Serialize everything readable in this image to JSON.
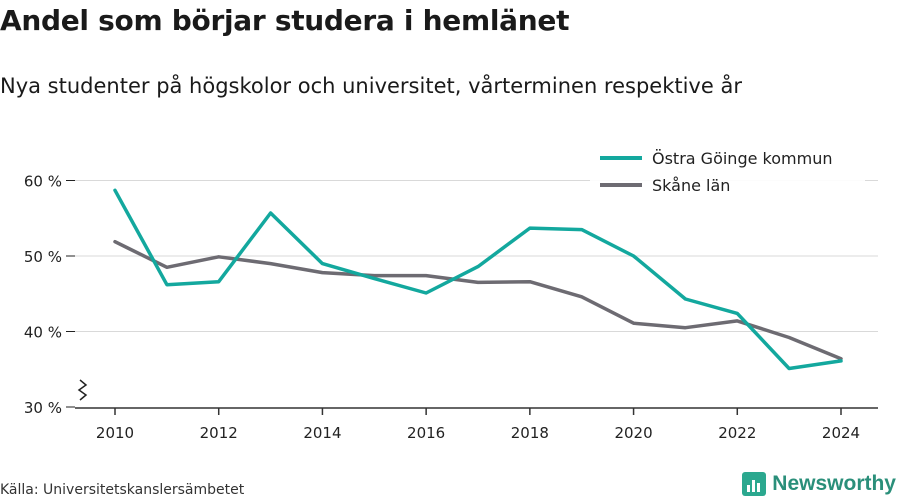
{
  "header": {
    "title": "Andel som börjar studera i hemlänet",
    "subtitle": "Nya studenter på högskolor och universitet, vårterminen respektive år"
  },
  "footer": {
    "source": "Källa: Universitetskanslersämbetet",
    "brand": "Newsworthy",
    "brand_icon": "bar-chart-icon",
    "brand_color": "#2ba88f"
  },
  "chart_data": {
    "type": "line",
    "title": "Andel som börjar studera i hemlänet",
    "subtitle": "Nya studenter på högskolor och universitet, vårterminen respektive år",
    "x": [
      2010,
      2011,
      2012,
      2013,
      2014,
      2015,
      2016,
      2017,
      2018,
      2019,
      2020,
      2021,
      2022,
      2023,
      2024
    ],
    "x_ticks": [
      2010,
      2012,
      2014,
      2016,
      2018,
      2020,
      2022,
      2024
    ],
    "y_ticks": [
      30,
      40,
      50,
      60
    ],
    "y_tick_suffix": " %",
    "ylim": [
      30,
      63
    ],
    "y_axis_break": true,
    "grid": true,
    "legend_position": "top-right",
    "series": [
      {
        "name": "Östra Göinge kommun",
        "color": "#13a89e",
        "values": [
          58.7,
          46.2,
          46.6,
          55.7,
          49.0,
          47.0,
          45.1,
          48.6,
          53.7,
          53.5,
          50.0,
          44.3,
          42.4,
          35.1,
          36.1
        ]
      },
      {
        "name": "Skåne län",
        "color": "#6d6b72",
        "values": [
          51.9,
          48.5,
          49.9,
          49.0,
          47.8,
          47.4,
          47.4,
          46.5,
          46.6,
          44.6,
          41.1,
          40.5,
          41.4,
          39.2,
          36.4
        ]
      }
    ]
  }
}
